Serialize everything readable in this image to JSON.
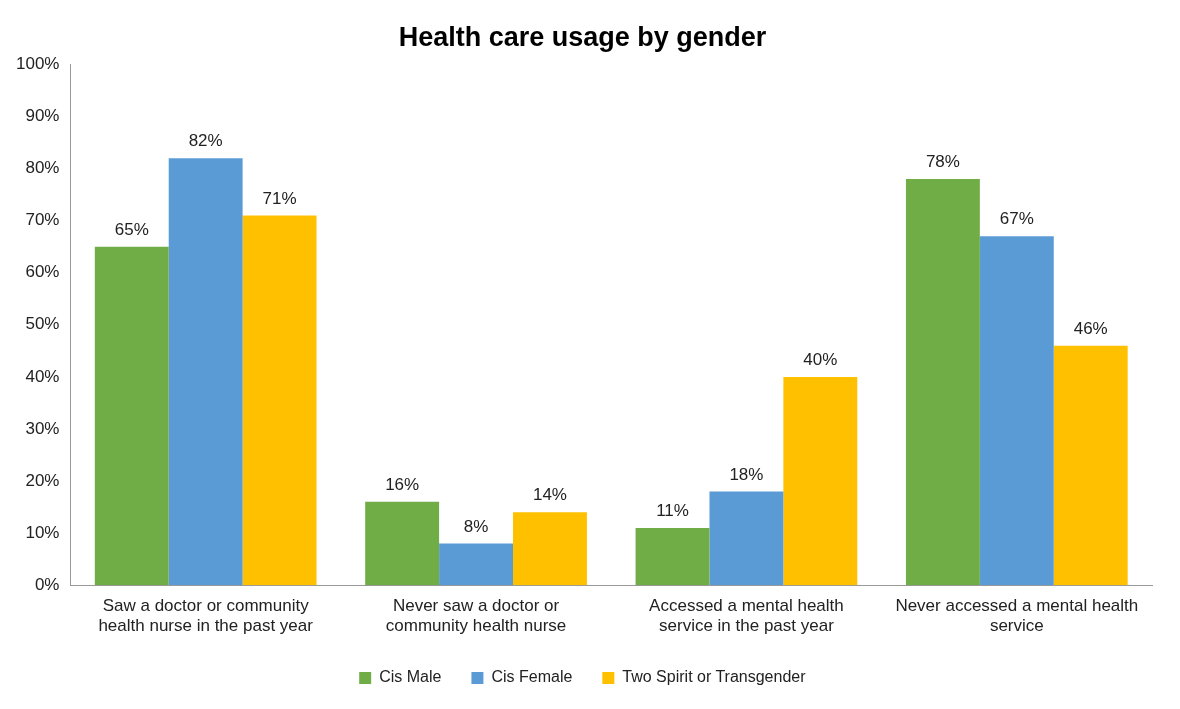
{
  "chart_data": {
    "type": "bar",
    "title": "Health care usage by gender",
    "categories": [
      "Saw a doctor or community health nurse in the past year",
      "Never saw a doctor or community health nurse",
      "Accessed a mental health service in the past year",
      "Never accessed a mental health service"
    ],
    "series": [
      {
        "name": "Cis Male",
        "color": "#70ad47",
        "values": [
          65,
          16,
          11,
          78
        ],
        "value_labels": [
          "65%",
          "16%",
          "11%",
          "78%"
        ]
      },
      {
        "name": "Cis Female",
        "color": "#5b9bd5",
        "values": [
          82,
          8,
          18,
          67
        ],
        "value_labels": [
          "82%",
          "8%",
          "18%",
          "67%"
        ]
      },
      {
        "name": "Two Spirit or Transgender",
        "color": "#ffc000",
        "values": [
          71,
          14,
          40,
          46
        ],
        "value_labels": [
          "71%",
          "14%",
          "40%",
          "46%"
        ]
      }
    ],
    "ylim": [
      0,
      100
    ],
    "yticks": [
      {
        "value": 0,
        "label": "0%"
      },
      {
        "value": 10,
        "label": "10%"
      },
      {
        "value": 20,
        "label": "20%"
      },
      {
        "value": 30,
        "label": "30%"
      },
      {
        "value": 40,
        "label": "40%"
      },
      {
        "value": 50,
        "label": "50%"
      },
      {
        "value": 60,
        "label": "60%"
      },
      {
        "value": 70,
        "label": "70%"
      },
      {
        "value": 80,
        "label": "80%"
      },
      {
        "value": 90,
        "label": "90%"
      },
      {
        "value": 100,
        "label": "100%"
      }
    ],
    "grid": false,
    "legend": "bottom"
  }
}
